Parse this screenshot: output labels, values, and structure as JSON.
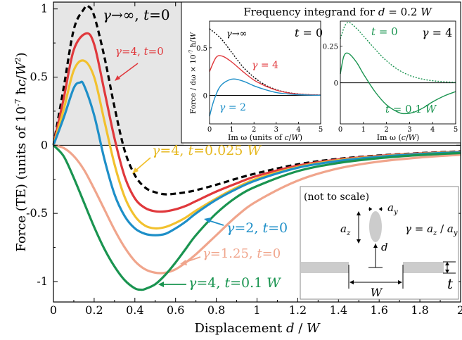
{
  "chart_data": [
    {
      "type": "line",
      "xlabel": "Displacement d / W",
      "ylabel": "Force (TE) (units of 10^-7 ħc/W^2)",
      "xlim": [
        0,
        2
      ],
      "ylim": [
        -1.15,
        1.05
      ],
      "xticks": [
        "0",
        "0.2",
        "0.4",
        "0.6",
        "0.8",
        "1",
        "1.2",
        "1.4",
        "1.6",
        "1.8",
        "2"
      ],
      "yticks": [
        "-1",
        "-0.5",
        "0",
        "0.5",
        "1"
      ],
      "grid": false,
      "shaded_region": {
        "x": [
          0,
          0.64
        ],
        "color": "#e6e6e6"
      },
      "series": [
        {
          "name": "γ→∞, t=0",
          "color": "#000000",
          "style": "dashed",
          "x": [
            0,
            0.05,
            0.1,
            0.15,
            0.17,
            0.2,
            0.25,
            0.3,
            0.35,
            0.4,
            0.45,
            0.5,
            0.55,
            0.6,
            0.65,
            0.7,
            0.8,
            0.9,
            1.0,
            1.2,
            1.4,
            1.6,
            1.8,
            2.0
          ],
          "values": [
            0,
            0.42,
            0.85,
            1.0,
            1.02,
            0.95,
            0.65,
            0.28,
            -0.04,
            -0.22,
            -0.31,
            -0.345,
            -0.36,
            -0.355,
            -0.345,
            -0.33,
            -0.29,
            -0.245,
            -0.205,
            -0.14,
            -0.1,
            -0.075,
            -0.058,
            -0.045
          ]
        },
        {
          "name": "γ=4, t=0",
          "color": "#e0383c",
          "style": "solid",
          "x": [
            0,
            0.05,
            0.1,
            0.16,
            0.2,
            0.25,
            0.3,
            0.35,
            0.4,
            0.45,
            0.5,
            0.55,
            0.6,
            0.65,
            0.7,
            0.8,
            0.9,
            1.0,
            1.2,
            1.4,
            1.6,
            1.8,
            2.0
          ],
          "values": [
            0,
            0.34,
            0.7,
            0.82,
            0.74,
            0.4,
            0.05,
            -0.23,
            -0.39,
            -0.46,
            -0.485,
            -0.485,
            -0.47,
            -0.445,
            -0.41,
            -0.34,
            -0.28,
            -0.225,
            -0.15,
            -0.105,
            -0.078,
            -0.06,
            -0.048
          ]
        },
        {
          "name": "γ=4, t=0.025 W",
          "color": "#f2c12e",
          "style": "solid",
          "x": [
            0,
            0.05,
            0.1,
            0.15,
            0.2,
            0.25,
            0.3,
            0.35,
            0.4,
            0.45,
            0.5,
            0.55,
            0.6,
            0.65,
            0.7,
            0.8,
            0.9,
            1.0,
            1.2,
            1.4,
            1.6,
            1.8,
            2.0
          ],
          "values": [
            0,
            0.26,
            0.55,
            0.62,
            0.5,
            0.18,
            -0.14,
            -0.38,
            -0.52,
            -0.59,
            -0.61,
            -0.6,
            -0.57,
            -0.53,
            -0.48,
            -0.39,
            -0.31,
            -0.245,
            -0.16,
            -0.11,
            -0.082,
            -0.063,
            -0.05
          ]
        },
        {
          "name": "γ=2, t=0",
          "color": "#1e8fc8",
          "style": "solid",
          "x": [
            0,
            0.05,
            0.1,
            0.13,
            0.15,
            0.2,
            0.25,
            0.3,
            0.35,
            0.4,
            0.45,
            0.5,
            0.55,
            0.6,
            0.65,
            0.7,
            0.8,
            0.9,
            1.0,
            1.2,
            1.4,
            1.6,
            1.8,
            2.0
          ],
          "values": [
            0,
            0.2,
            0.42,
            0.46,
            0.44,
            0.22,
            -0.1,
            -0.36,
            -0.52,
            -0.61,
            -0.65,
            -0.66,
            -0.65,
            -0.61,
            -0.56,
            -0.5,
            -0.4,
            -0.32,
            -0.255,
            -0.165,
            -0.115,
            -0.085,
            -0.065,
            -0.052
          ]
        },
        {
          "name": "γ=1.25, t=0",
          "color": "#f0a58c",
          "style": "solid",
          "x": [
            0,
            0.05,
            0.1,
            0.15,
            0.2,
            0.25,
            0.3,
            0.35,
            0.4,
            0.45,
            0.5,
            0.55,
            0.6,
            0.65,
            0.7,
            0.8,
            0.9,
            1.0,
            1.2,
            1.4,
            1.6,
            1.8,
            2.0
          ],
          "values": [
            0,
            -0.02,
            -0.08,
            -0.18,
            -0.32,
            -0.47,
            -0.62,
            -0.75,
            -0.85,
            -0.91,
            -0.935,
            -0.935,
            -0.91,
            -0.86,
            -0.8,
            -0.66,
            -0.52,
            -0.41,
            -0.26,
            -0.17,
            -0.12,
            -0.09,
            -0.07
          ]
        },
        {
          "name": "γ=4, t=0.1 W",
          "color": "#1a9450",
          "style": "solid",
          "x": [
            0,
            0.05,
            0.1,
            0.15,
            0.2,
            0.25,
            0.3,
            0.35,
            0.4,
            0.43,
            0.45,
            0.5,
            0.55,
            0.6,
            0.65,
            0.7,
            0.8,
            0.9,
            1.0,
            1.2,
            1.4,
            1.6,
            1.8,
            2.0
          ],
          "values": [
            0,
            -0.08,
            -0.24,
            -0.42,
            -0.6,
            -0.76,
            -0.89,
            -0.99,
            -1.05,
            -1.06,
            -1.055,
            -1.02,
            -0.95,
            -0.86,
            -0.76,
            -0.66,
            -0.5,
            -0.38,
            -0.3,
            -0.19,
            -0.13,
            -0.095,
            -0.072,
            -0.057
          ]
        }
      ],
      "annotations": [
        {
          "text": "γ→∞, t=0"
        },
        {
          "text": "γ=4, t=0"
        },
        {
          "text": "γ=4, t=0.025 W"
        },
        {
          "text": "γ=2, t=0"
        },
        {
          "text": "γ=1.25, t=0"
        },
        {
          "text": "γ=4, t=0.1 W"
        }
      ]
    },
    {
      "type": "line",
      "title": "Frequency integrand for d = 0.2 W",
      "panel": "inset-left",
      "corner_label": "t = 0",
      "xlabel": "Im ω (units of c/W)",
      "ylabel": "Force / dω × 10^-7 ħ/W",
      "xlim": [
        0,
        5
      ],
      "ylim": [
        -0.3,
        0.78
      ],
      "xticks": [
        "0",
        "1",
        "2",
        "3",
        "4",
        "5"
      ],
      "yticks": [
        "0",
        "0.5"
      ],
      "series": [
        {
          "name": "γ→∞",
          "color": "#000000",
          "style": "dotted",
          "x": [
            0,
            0.5,
            1,
            1.5,
            2,
            2.5,
            3,
            3.5,
            4,
            4.5,
            5
          ],
          "values": [
            0.7,
            0.6,
            0.45,
            0.3,
            0.19,
            0.11,
            0.06,
            0.03,
            0.015,
            0.007,
            0.003
          ]
        },
        {
          "name": "γ = 4",
          "color": "#e0383c",
          "style": "solid",
          "x": [
            0,
            0.3,
            0.6,
            1,
            1.5,
            2,
            2.5,
            3,
            3.5,
            4,
            4.5,
            5
          ],
          "values": [
            0.25,
            0.4,
            0.41,
            0.35,
            0.25,
            0.16,
            0.1,
            0.055,
            0.028,
            0.014,
            0.006,
            0.003
          ]
        },
        {
          "name": "γ = 2",
          "color": "#1e8fc8",
          "style": "solid",
          "x": [
            0,
            0.2,
            0.5,
            1,
            1.5,
            2,
            2.5,
            3,
            3.5,
            4,
            4.5,
            5
          ],
          "values": [
            -0.22,
            -0.05,
            0.1,
            0.17,
            0.15,
            0.1,
            0.06,
            0.03,
            0.015,
            0.007,
            0.003,
            0.001
          ]
        }
      ]
    },
    {
      "type": "line",
      "panel": "inset-right",
      "corner_label": "γ = 4",
      "xlabel": "Im ω (c/W)",
      "xlim": [
        0,
        5
      ],
      "ylim": [
        -0.28,
        0.42
      ],
      "xticks": [
        "0",
        "1",
        "2",
        "3",
        "4",
        "5"
      ],
      "yticks": [
        "0",
        "0.25"
      ],
      "series": [
        {
          "name": "t = 0",
          "color": "#1a9450",
          "style": "dotted",
          "x": [
            0,
            0.2,
            0.4,
            0.7,
            1,
            1.5,
            2,
            2.5,
            3,
            3.5,
            4,
            4.5,
            5
          ],
          "values": [
            0.3,
            0.39,
            0.41,
            0.37,
            0.32,
            0.23,
            0.15,
            0.09,
            0.05,
            0.027,
            0.014,
            0.007,
            0.003
          ]
        },
        {
          "name": "t = 0.1 W",
          "color": "#1a9450",
          "style": "solid",
          "x": [
            0,
            0.15,
            0.35,
            0.7,
            1,
            1.5,
            2,
            2.5,
            2.8,
            3.2,
            3.6,
            4,
            4.5,
            5
          ],
          "values": [
            0.06,
            0.18,
            0.2,
            0.14,
            0.06,
            -0.06,
            -0.15,
            -0.2,
            -0.21,
            -0.2,
            -0.17,
            -0.13,
            -0.09,
            -0.06
          ]
        }
      ]
    }
  ],
  "texts": {
    "main_ylabel_pre": "Force (TE) (units of 10",
    "main_ylabel_exp": "-7",
    "main_ylabel_mid": " ħc/W",
    "main_ylabel_exp2": "2",
    "main_ylabel_post": ")",
    "inset_title": "Frequency integrand for d = 0.2 W",
    "inset1_ylabel": "Force / dω × 10⁻⁷ ħ/W",
    "inset1_xlabel": "Im ω (units of c/W)",
    "inset2_xlabel": "Im ω (c/W)",
    "inset1_label_inf": "γ→∞",
    "inset1_label_t": "t = 0",
    "inset1_label_g4": "γ = 4",
    "inset1_label_g2": "γ = 2",
    "inset2_label_t0": "t = 0",
    "inset2_label_g4": "γ = 4",
    "inset2_label_t01": "t = 0.1 W",
    "schem_note": "(not to scale)",
    "schem_ay": "a",
    "schem_ay_sub": "y",
    "schem_az": "a",
    "schem_az_sub": "z",
    "schem_d": "d",
    "schem_gamma": "γ = a",
    "schem_gamma_sub1": "z",
    "schem_gamma_mid": " / a",
    "schem_gamma_sub2": "y",
    "schem_W": "W",
    "schem_t": "t"
  },
  "colors": {
    "black": "#000000",
    "red": "#e0383c",
    "yellow": "#f2c12e",
    "blue": "#1e8fc8",
    "salmon": "#f0a58c",
    "green": "#1a9450",
    "shade": "#e6e6e6",
    "yellow_text": "#e6b81f"
  }
}
